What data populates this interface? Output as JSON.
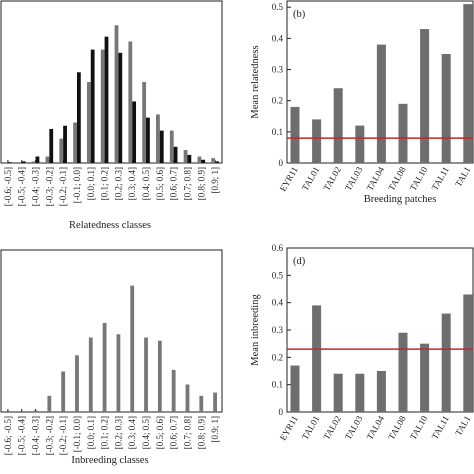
{
  "chart_data": [
    {
      "type": "bar",
      "x_label": "Relatedness classes",
      "categories": [
        "[-0.6; -0.5]",
        "[-0.5; -0.4]",
        "[-0.4; -0.3]",
        "[-0.3; -0.2]",
        "[-0.2; -0.1]",
        "[-0.1; 0.0]",
        "[0.0; 0.1]",
        "[0.1; 0.2]",
        "[0.2; 0.3]",
        "[0.3; 0.4]",
        "[0.4; 0.5]",
        "[0.5; 0.6]",
        "[0.6; 0.7]",
        "[0.7; 0.8]",
        "[0.8; 0.9]",
        "[0.9; 1]"
      ],
      "series": [
        {
          "color": "#777777",
          "values": [
            0,
            0,
            0.01,
            0.04,
            0.15,
            0.25,
            0.5,
            0.7,
            0.85,
            0.75,
            0.5,
            0.3,
            0.2,
            0.08,
            0.04,
            0.03
          ]
        },
        {
          "color": "#111111",
          "values": [
            0.005,
            0.01,
            0.04,
            0.21,
            0.23,
            0.56,
            0.7,
            0.78,
            0.68,
            0.38,
            0.28,
            0.2,
            0.1,
            0.05,
            0.02,
            0.01
          ]
        }
      ],
      "ylim": [
        0,
        1
      ]
    },
    {
      "type": "bar",
      "panel_label": "(b)",
      "y_label": "Mean relatedness",
      "x_label": "Breeding patches",
      "categories": [
        "EYR11",
        "TAL01",
        "TAL02",
        "TAL03",
        "TAL04",
        "TAL08",
        "TAL10",
        "TAL11",
        "TAL1"
      ],
      "values": [
        0.18,
        0.14,
        0.24,
        0.12,
        0.38,
        0.19,
        0.43,
        0.35,
        0.51
      ],
      "color": "#6e6e6e",
      "reference_line": 0.08,
      "reference_color": "#c0272d",
      "ylim": [
        0,
        0.52
      ],
      "yticks": [
        0,
        0.1,
        0.2,
        0.3,
        0.4,
        0.5
      ]
    },
    {
      "type": "bar",
      "x_label": "Inbreeding classes",
      "categories": [
        "[-0.6; -0.5]",
        "[-0.5; -0.4]",
        "[-0.4; -0.3]",
        "[-0.3; -0.2]",
        "[-0.2; -0.1]",
        "[-0.1; 0.0]",
        "[0.0; 0.1]",
        "[0.1; 0.2]",
        "[0.2; 0.3]",
        "[0.3; 0.4]",
        "[0.4; 0.5]",
        "[0.5; 0.6]",
        "[0.6; 0.7]",
        "[0.7; 0.8]",
        "[0.8; 0.9]",
        "[0.9; 1]"
      ],
      "series": [
        {
          "color": "#777777",
          "values": [
            0,
            0,
            0.01,
            0.1,
            0.25,
            0.35,
            0.46,
            0.55,
            0.48,
            0.78,
            0.46,
            0.44,
            0.26,
            0.17,
            0.1,
            0.12
          ]
        }
      ],
      "ylim": [
        0,
        1
      ]
    },
    {
      "type": "bar",
      "panel_label": "(d)",
      "y_label": "Mean inbreeding",
      "categories": [
        "EYR11",
        "TAL01",
        "TAL02",
        "TAL03",
        "TAL04",
        "TAL08",
        "TAL10",
        "TAL11",
        "TAL1"
      ],
      "values": [
        0.17,
        0.39,
        0.14,
        0.14,
        0.15,
        0.29,
        0.25,
        0.36,
        0.43
      ],
      "color": "#6e6e6e",
      "reference_line": 0.23,
      "reference_color": "#c0272d",
      "ylim": [
        0,
        0.6
      ],
      "yticks": [
        0,
        0.1,
        0.2,
        0.3,
        0.4,
        0.5,
        0.6
      ]
    }
  ]
}
